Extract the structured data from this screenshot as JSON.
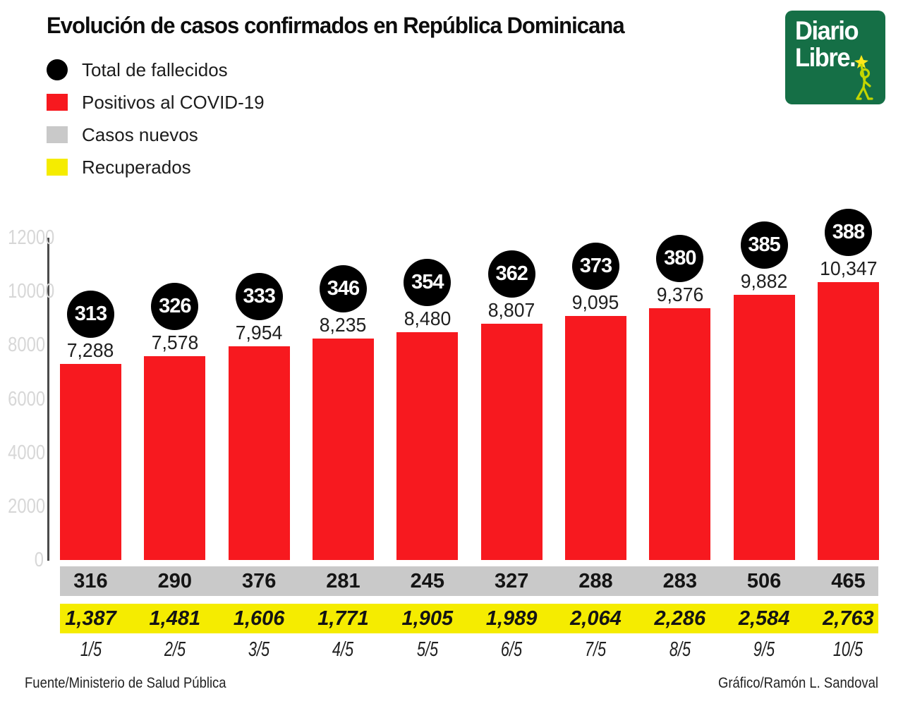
{
  "page": {
    "title": "Evolución de casos confirmados en República Dominicana",
    "source": "Fuente/Ministerio de Salud Pública",
    "credit": "Gráfico/Ramón L. Sandoval"
  },
  "logo": {
    "line1": "Diario",
    "line2": "Libre.",
    "bg_color": "#156f46",
    "text_color": "#ffffff",
    "mascot_color": "#c3d600",
    "star_color": "#ffe81a"
  },
  "legend": [
    {
      "label": "Total de fallecidos",
      "swatch": "circle",
      "color": "#000000"
    },
    {
      "label": "Positivos al COVID-19",
      "swatch": "square",
      "color": "#f7191f"
    },
    {
      "label": "Casos nuevos",
      "swatch": "square",
      "color": "#c9c9c9"
    },
    {
      "label": "Recuperados",
      "swatch": "square",
      "color": "#f5ec00"
    }
  ],
  "chart_data": {
    "type": "bar",
    "title": "Evolución de casos confirmados en República Dominicana",
    "categories": [
      "1/5",
      "2/5",
      "3/5",
      "4/5",
      "5/5",
      "6/5",
      "7/5",
      "8/5",
      "9/5",
      "10/5"
    ],
    "series": [
      {
        "name": "Total de fallecidos",
        "values": [
          313,
          326,
          333,
          346,
          354,
          362,
          373,
          380,
          385,
          388
        ],
        "labels": [
          "313",
          "326",
          "333",
          "346",
          "354",
          "362",
          "373",
          "380",
          "385",
          "388"
        ]
      },
      {
        "name": "Positivos al COVID-19",
        "values": [
          7288,
          7578,
          7954,
          8235,
          8480,
          8807,
          9095,
          9376,
          9882,
          10347
        ],
        "labels": [
          "7,288",
          "7,578",
          "7,954",
          "8,235",
          "8,480",
          "8,807",
          "9,095",
          "9,376",
          "9,882",
          "10,347"
        ]
      },
      {
        "name": "Casos nuevos",
        "values": [
          316,
          290,
          376,
          281,
          245,
          327,
          288,
          283,
          506,
          465
        ],
        "labels": [
          "316",
          "290",
          "376",
          "281",
          "245",
          "327",
          "288",
          "283",
          "506",
          "465"
        ]
      },
      {
        "name": "Recuperados",
        "values": [
          1387,
          1481,
          1606,
          1771,
          1905,
          1989,
          2064,
          2286,
          2584,
          2763
        ],
        "labels": [
          "1,387",
          "1,481",
          "1,606",
          "1,771",
          "1,905",
          "1,989",
          "2,064",
          "2,286",
          "2,584",
          "2,763"
        ]
      }
    ],
    "xlabel": "",
    "ylabel": "",
    "ylim": [
      0,
      12000
    ],
    "yticks": [
      0,
      2000,
      4000,
      6000,
      8000,
      10000,
      12000
    ],
    "grid": false,
    "legend_position": "top-left",
    "bar_color": "#f7191f",
    "badge_color": "#000000",
    "new_cases_band_color": "#c9c9c9",
    "recovered_band_color": "#f5ec00"
  }
}
